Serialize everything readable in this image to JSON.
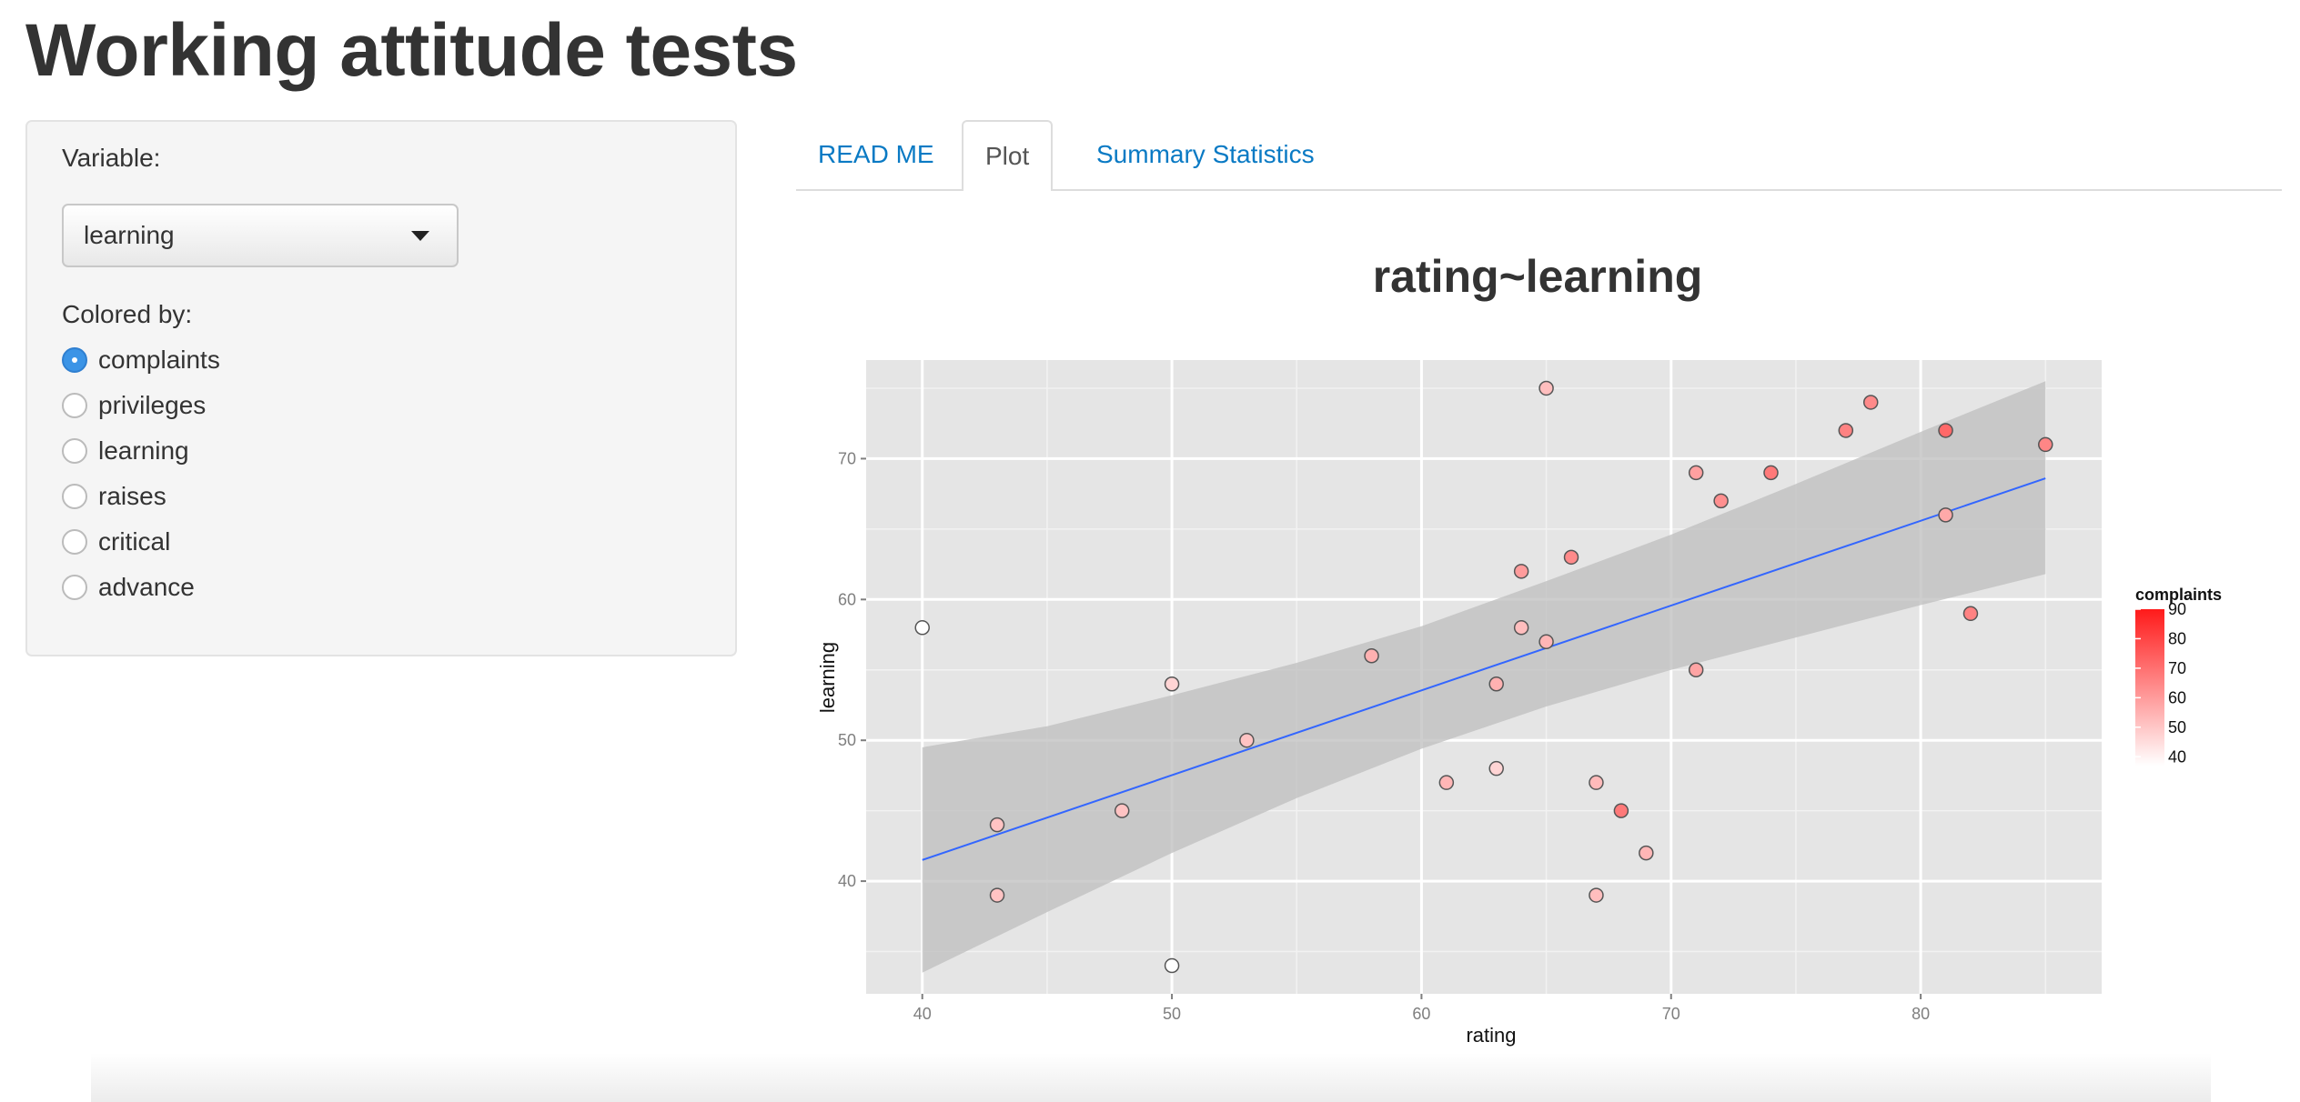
{
  "app": {
    "title": "Working attitude tests"
  },
  "sidebar": {
    "variable_label": "Variable:",
    "variable_selected": "learning",
    "colored_by_label": "Colored by:",
    "color_options": [
      "complaints",
      "privileges",
      "learning",
      "raises",
      "critical",
      "advance"
    ],
    "color_selected": "complaints"
  },
  "tabs": [
    {
      "label": "READ ME",
      "active": false
    },
    {
      "label": "Plot",
      "active": true
    },
    {
      "label": "Summary Statistics",
      "active": false
    }
  ],
  "colors": {
    "accent_link": "#0a7ac4",
    "radio_checked": "#3b94e6",
    "panel_bg": "#e5e5e5",
    "regression_line": "#3366ff",
    "confidence_band": "#bdbdbd",
    "gradient_low": "#ffffff",
    "gradient_high": "#ff1a1a"
  },
  "chart_data": {
    "type": "scatter",
    "title": "rating~learning",
    "xlabel": "rating",
    "ylabel": "learning",
    "xlim": [
      37.75,
      87.25
    ],
    "ylim": [
      32.0,
      77.0
    ],
    "xticks": [
      40,
      50,
      60,
      70,
      80
    ],
    "yticks": [
      40,
      50,
      60,
      70
    ],
    "grid": true,
    "legend": {
      "title": "complaints",
      "position": "right",
      "range": [
        37,
        90
      ],
      "ticks": [
        40,
        50,
        60,
        70,
        80,
        90
      ]
    },
    "points": [
      {
        "x": 40,
        "y": 58,
        "complaints": 37
      },
      {
        "x": 43,
        "y": 44,
        "complaints": 51
      },
      {
        "x": 43,
        "y": 39,
        "complaints": 51
      },
      {
        "x": 48,
        "y": 45,
        "complaints": 51
      },
      {
        "x": 50,
        "y": 54,
        "complaints": 47
      },
      {
        "x": 50,
        "y": 34,
        "complaints": 37
      },
      {
        "x": 53,
        "y": 50,
        "complaints": 51
      },
      {
        "x": 58,
        "y": 56,
        "complaints": 55
      },
      {
        "x": 61,
        "y": 47,
        "complaints": 54
      },
      {
        "x": 63,
        "y": 54,
        "complaints": 55
      },
      {
        "x": 63,
        "y": 48,
        "complaints": 47
      },
      {
        "x": 64,
        "y": 62,
        "complaints": 60
      },
      {
        "x": 64,
        "y": 58,
        "complaints": 52
      },
      {
        "x": 65,
        "y": 75,
        "complaints": 52
      },
      {
        "x": 65,
        "y": 57,
        "complaints": 54
      },
      {
        "x": 66,
        "y": 63,
        "complaints": 64
      },
      {
        "x": 67,
        "y": 47,
        "complaints": 53
      },
      {
        "x": 67,
        "y": 39,
        "complaints": 52
      },
      {
        "x": 68,
        "y": 45,
        "complaints": 68
      },
      {
        "x": 69,
        "y": 42,
        "complaints": 54
      },
      {
        "x": 71,
        "y": 69,
        "complaints": 59
      },
      {
        "x": 71,
        "y": 55,
        "complaints": 58
      },
      {
        "x": 72,
        "y": 67,
        "complaints": 63
      },
      {
        "x": 74,
        "y": 69,
        "complaints": 68
      },
      {
        "x": 77,
        "y": 72,
        "complaints": 66
      },
      {
        "x": 78,
        "y": 74,
        "complaints": 64
      },
      {
        "x": 81,
        "y": 72,
        "complaints": 72
      },
      {
        "x": 81,
        "y": 66,
        "complaints": 57
      },
      {
        "x": 82,
        "y": 59,
        "complaints": 66
      },
      {
        "x": 85,
        "y": 71,
        "complaints": 65
      }
    ],
    "fit_line": [
      [
        40,
        41.5
      ],
      [
        85,
        68.6
      ]
    ],
    "confidence_band": [
      {
        "x": 40,
        "lower": 33.5,
        "upper": 49.5
      },
      {
        "x": 45,
        "lower": 37.8,
        "upper": 51.0
      },
      {
        "x": 50,
        "lower": 42.0,
        "upper": 53.2
      },
      {
        "x": 55,
        "lower": 45.9,
        "upper": 55.5
      },
      {
        "x": 60,
        "lower": 49.4,
        "upper": 58.1
      },
      {
        "x": 65,
        "lower": 52.4,
        "upper": 61.3
      },
      {
        "x": 70,
        "lower": 55.0,
        "upper": 64.6
      },
      {
        "x": 75,
        "lower": 57.3,
        "upper": 68.2
      },
      {
        "x": 80,
        "lower": 59.6,
        "upper": 71.9
      },
      {
        "x": 85,
        "lower": 61.8,
        "upper": 75.5
      }
    ]
  }
}
